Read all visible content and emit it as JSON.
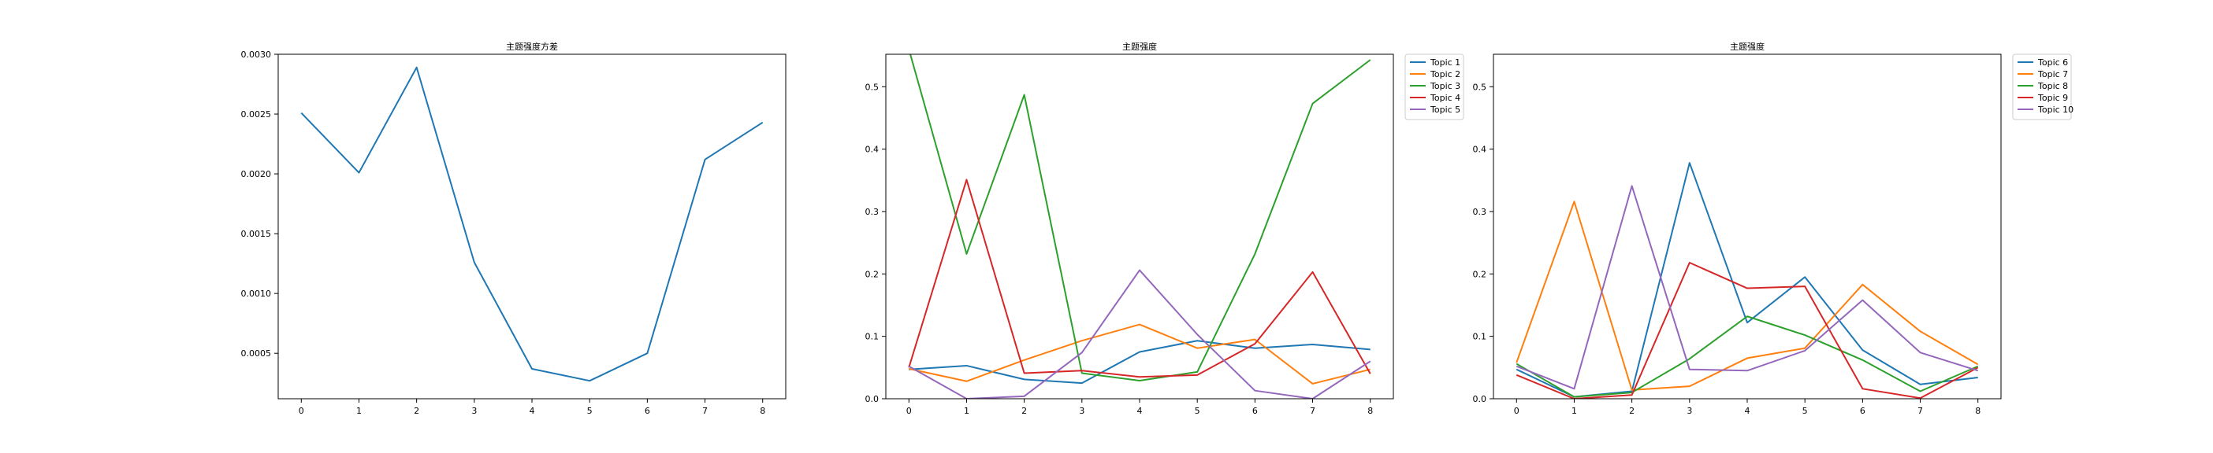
{
  "chart_data": [
    {
      "type": "line",
      "title": "主题强度方差",
      "xlabel": "",
      "ylabel": "",
      "x": [
        0,
        1,
        2,
        3,
        4,
        5,
        6,
        7,
        8
      ],
      "xlim": [
        -0.4,
        8.4
      ],
      "ylim": [
        0.00012,
        0.003
      ],
      "xticks": [
        "0",
        "1",
        "2",
        "3",
        "4",
        "5",
        "6",
        "7",
        "8"
      ],
      "yticks": [
        "0.0005",
        "0.0010",
        "0.0015",
        "0.0020",
        "0.0025",
        "0.0030"
      ],
      "ytick_values": [
        0.0005,
        0.001,
        0.0015,
        0.002,
        0.0025,
        0.003
      ],
      "legend": false,
      "series": [
        {
          "values": [
            0.00251,
            0.00201,
            0.00289,
            0.00126,
            0.00037,
            0.00027,
            0.0005,
            0.00212,
            0.00243
          ],
          "color": "#1f77b4"
        }
      ]
    },
    {
      "type": "line",
      "title": "主题强度",
      "xlabel": "",
      "ylabel": "",
      "x": [
        0,
        1,
        2,
        3,
        4,
        5,
        6,
        7,
        8
      ],
      "xlim": [
        -0.4,
        8.4
      ],
      "ylim": [
        0,
        0.552
      ],
      "xticks": [
        "0",
        "1",
        "2",
        "3",
        "4",
        "5",
        "6",
        "7",
        "8"
      ],
      "yticks": [
        "0.0",
        "0.1",
        "0.2",
        "0.3",
        "0.4",
        "0.5"
      ],
      "ytick_values": [
        0,
        0.1,
        0.2,
        0.3,
        0.4,
        0.5
      ],
      "legend": true,
      "legend_position": "outside top-right",
      "series": [
        {
          "name": "Topic 1",
          "color": "#1f77b4",
          "values": [
            0.047,
            0.053,
            0.031,
            0.025,
            0.075,
            0.093,
            0.081,
            0.087,
            0.079
          ]
        },
        {
          "name": "Topic 2",
          "color": "#ff7f0e",
          "values": [
            0.048,
            0.028,
            0.062,
            0.093,
            0.119,
            0.081,
            0.095,
            0.024,
            0.047
          ]
        },
        {
          "name": "Topic 3",
          "color": "#2ca02c",
          "values": [
            0.56,
            0.232,
            0.487,
            0.041,
            0.029,
            0.043,
            0.232,
            0.473,
            0.543
          ]
        },
        {
          "name": "Topic 4",
          "color": "#d62728",
          "values": [
            0.05,
            0.351,
            0.041,
            0.045,
            0.035,
            0.038,
            0.088,
            0.203,
            0.04
          ]
        },
        {
          "name": "Topic 5",
          "color": "#9467bd",
          "values": [
            0.052,
            0.0,
            0.004,
            0.074,
            0.206,
            0.103,
            0.013,
            0.0,
            0.06
          ]
        }
      ]
    },
    {
      "type": "line",
      "title": "主题强度",
      "xlabel": "",
      "ylabel": "",
      "x": [
        0,
        1,
        2,
        3,
        4,
        5,
        6,
        7,
        8
      ],
      "xlim": [
        -0.4,
        8.4
      ],
      "ylim": [
        0,
        0.552
      ],
      "xticks": [
        "0",
        "1",
        "2",
        "3",
        "4",
        "5",
        "6",
        "7",
        "8"
      ],
      "yticks": [
        "0.0",
        "0.1",
        "0.2",
        "0.3",
        "0.4",
        "0.5"
      ],
      "ytick_values": [
        0,
        0.1,
        0.2,
        0.3,
        0.4,
        0.5
      ],
      "legend": true,
      "legend_position": "outside top-right",
      "series": [
        {
          "name": "Topic 6",
          "color": "#1f77b4",
          "values": [
            0.047,
            0.003,
            0.012,
            0.378,
            0.122,
            0.195,
            0.078,
            0.023,
            0.034
          ]
        },
        {
          "name": "Topic 7",
          "color": "#ff7f0e",
          "values": [
            0.058,
            0.316,
            0.014,
            0.02,
            0.065,
            0.081,
            0.183,
            0.108,
            0.055
          ]
        },
        {
          "name": "Topic 8",
          "color": "#2ca02c",
          "values": [
            0.056,
            0.003,
            0.01,
            0.064,
            0.132,
            0.102,
            0.062,
            0.012,
            0.052
          ]
        },
        {
          "name": "Topic 9",
          "color": "#d62728",
          "values": [
            0.038,
            0.0,
            0.006,
            0.218,
            0.177,
            0.18,
            0.016,
            0.001,
            0.05
          ]
        },
        {
          "name": "Topic 10",
          "color": "#9467bd",
          "values": [
            0.052,
            0.016,
            0.341,
            0.047,
            0.045,
            0.077,
            0.158,
            0.074,
            0.045
          ]
        }
      ]
    }
  ]
}
